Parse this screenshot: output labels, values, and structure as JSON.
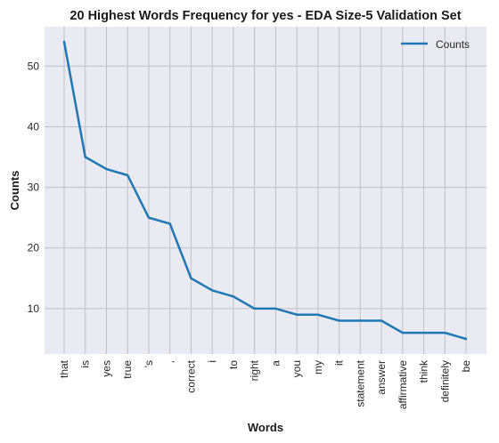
{
  "chart_data": {
    "type": "line",
    "title": "20 Highest Words Frequency for yes - EDA Size-5 Validation Set",
    "xlabel": "Words",
    "ylabel": "Counts",
    "categories": [
      "that",
      "is",
      "yes",
      "true",
      "'s",
      ",",
      "correct",
      "i",
      "to",
      "right",
      "a",
      "you",
      "my",
      "it",
      "statement",
      "answer",
      "affirmative",
      "think",
      "definitely",
      "be"
    ],
    "series": [
      {
        "name": "Counts",
        "values": [
          54,
          35,
          33,
          32,
          25,
          24,
          15,
          13,
          12,
          10,
          10,
          9,
          9,
          8,
          8,
          8,
          6,
          6,
          6,
          5
        ]
      }
    ],
    "ylim": [
      2.5,
      56.5
    ],
    "yticks": [
      10,
      20,
      30,
      40,
      50
    ],
    "grid": true,
    "legend_position": "top-right",
    "colors": {
      "line": "#1f77b4",
      "background": "#eaeaf2",
      "grid": "#c0c0c0"
    }
  }
}
